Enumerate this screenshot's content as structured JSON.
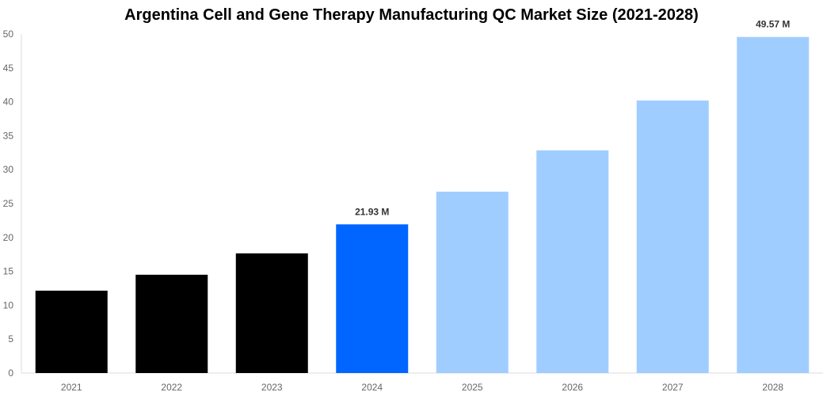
{
  "chart_data": {
    "type": "bar",
    "title": "Argentina Cell and Gene Therapy Manufacturing QC Market Size (2021-2028)",
    "xlabel": "",
    "ylabel": "",
    "ylim": [
      0,
      50
    ],
    "yticks": [
      0,
      5,
      10,
      15,
      20,
      25,
      30,
      35,
      40,
      45,
      50
    ],
    "grid": false,
    "categories": [
      "2021",
      "2022",
      "2023",
      "2024",
      "2025",
      "2026",
      "2027",
      "2028"
    ],
    "values": [
      12.15,
      14.5,
      17.65,
      21.93,
      26.75,
      32.85,
      40.2,
      49.57
    ],
    "colors": [
      "#000000",
      "#000000",
      "#000000",
      "#0066ff",
      "#a0cdff",
      "#a0cdff",
      "#a0cdff",
      "#a0cdff"
    ],
    "data_labels": {
      "3": "21.93 M",
      "7": "49.57 M"
    }
  }
}
